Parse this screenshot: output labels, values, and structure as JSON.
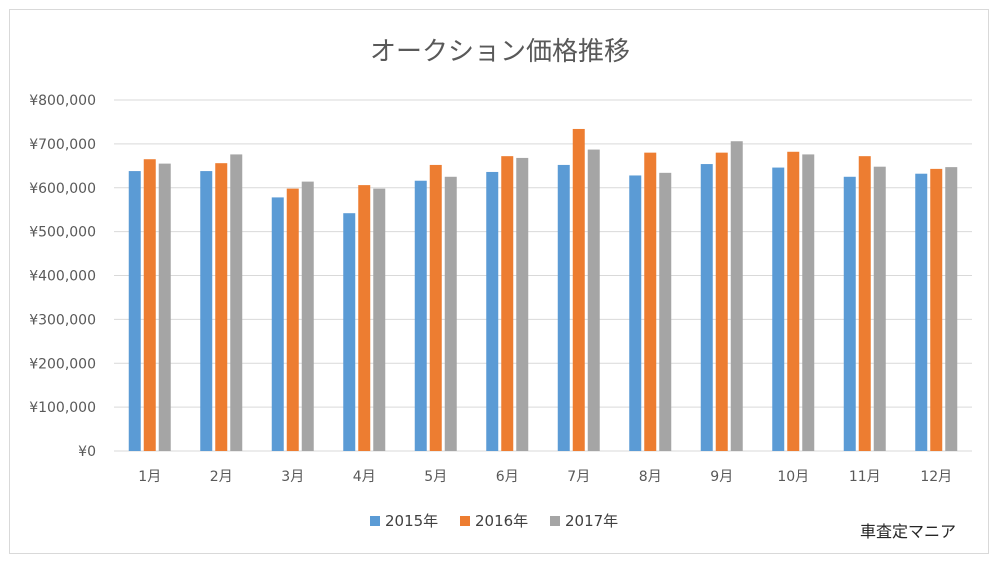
{
  "chart_data": {
    "type": "bar",
    "title": "オークション価格推移",
    "categories": [
      "1月",
      "2月",
      "3月",
      "4月",
      "5月",
      "6月",
      "7月",
      "8月",
      "9月",
      "10月",
      "11月",
      "12月"
    ],
    "series": [
      {
        "name": "2015年",
        "color": "#5b9bd5",
        "values": [
          638000,
          638000,
          578000,
          542000,
          616000,
          636000,
          652000,
          628000,
          654000,
          646000,
          625000,
          632000
        ]
      },
      {
        "name": "2016年",
        "color": "#ed7d31",
        "values": [
          665000,
          656000,
          598000,
          606000,
          652000,
          672000,
          734000,
          680000,
          680000,
          682000,
          672000,
          643000
        ]
      },
      {
        "name": "2017年",
        "color": "#a5a5a5",
        "values": [
          655000,
          676000,
          614000,
          598000,
          625000,
          668000,
          687000,
          634000,
          706000,
          676000,
          648000,
          647000
        ]
      }
    ],
    "ylim": [
      0,
      800000
    ],
    "y_ticks": [
      "¥0",
      "¥100,000",
      "¥200,000",
      "¥300,000",
      "¥400,000",
      "¥500,000",
      "¥600,000",
      "¥700,000",
      "¥800,000"
    ],
    "grid": true,
    "legend_position": "bottom"
  },
  "watermark": "車査定マニア"
}
